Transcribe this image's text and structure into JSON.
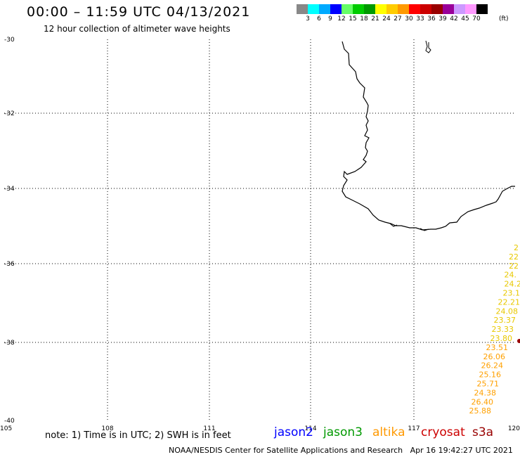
{
  "title": "00:00 – 11:59 UTC 04/13/2021",
  "subtitle": "12 hour collection of altimeter wave heights",
  "legend": {
    "unit": "(ft)",
    "colors": [
      "#888888",
      "#00ffff",
      "#00aaff",
      "#0000ff",
      "#66ff66",
      "#00cc00",
      "#009900",
      "#ffff00",
      "#ffcc00",
      "#ff9900",
      "#ff0000",
      "#cc0000",
      "#990000",
      "#990099",
      "#cc99ff",
      "#ff99ff",
      "#000000"
    ],
    "labels": [
      "3",
      "6",
      "9",
      "12",
      "15",
      "18",
      "21",
      "24",
      "27",
      "30",
      "33",
      "36",
      "39",
      "42",
      "45",
      "70"
    ]
  },
  "axes": {
    "lat_labels": [
      "-30",
      "-32",
      "-34",
      "-36",
      "-38",
      "-40"
    ],
    "lon_labels": [
      "105",
      "108",
      "111",
      "114",
      "117",
      "120"
    ]
  },
  "wave_labels": [
    {
      "text": "2",
      "color": "#e8c800"
    },
    {
      "text": "22",
      "color": "#e8c800"
    },
    {
      "text": "22",
      "color": "#e8c800"
    },
    {
      "text": "24.",
      "color": "#e8c800"
    },
    {
      "text": "24.2",
      "color": "#e8c800"
    },
    {
      "text": "23.1",
      "color": "#e8c800"
    },
    {
      "text": "22.21",
      "color": "#e8c800"
    },
    {
      "text": "24.08",
      "color": "#e8c800"
    },
    {
      "text": "23.37",
      "color": "#e8c800"
    },
    {
      "text": "23.33",
      "color": "#e8c800"
    },
    {
      "text": "23.80",
      "color": "#e8c800"
    },
    {
      "text": "23.51",
      "color": "#ffa000"
    },
    {
      "text": "26.06",
      "color": "#ffa000"
    },
    {
      "text": "26.24",
      "color": "#ffa000"
    },
    {
      "text": "25.16",
      "color": "#ffa000"
    },
    {
      "text": "25.71",
      "color": "#ffa000"
    },
    {
      "text": "24.38",
      "color": "#ffa000"
    },
    {
      "text": "26.40",
      "color": "#ffa000"
    },
    {
      "text": "25.88",
      "color": "#ffa000"
    }
  ],
  "note": "note: 1) Time is in UTC; 2) SWH is in feet",
  "satellites": [
    {
      "name": "jason2",
      "color": "#0000ff"
    },
    {
      "name": "jason3",
      "color": "#009900"
    },
    {
      "name": "altika",
      "color": "#ff9900"
    },
    {
      "name": "cryosat",
      "color": "#cc0000"
    },
    {
      "name": "s3a",
      "color": "#990000"
    }
  ],
  "footer": "NOAA/NESDIS Center for Satellite Applications and Research   Apr 16 19:42:27 UTC 2021"
}
